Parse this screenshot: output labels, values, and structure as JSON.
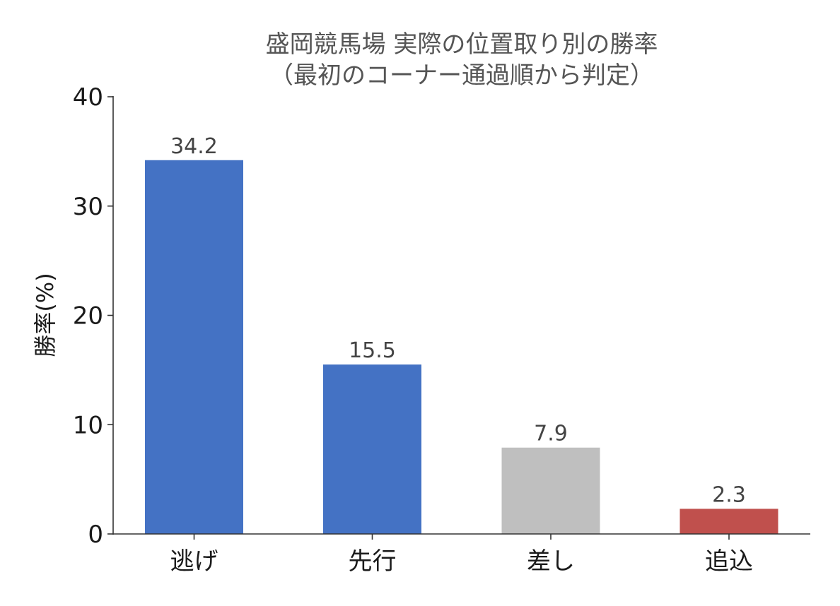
{
  "chart_data": {
    "type": "bar",
    "title_lines": [
      "盛岡競馬場 実際の位置取り別の勝率",
      "（最初のコーナー通過順から判定）"
    ],
    "xlabel": "",
    "ylabel": "勝率(%)",
    "categories": [
      "逃げ",
      "先行",
      "差し",
      "追込"
    ],
    "values": [
      34.2,
      15.5,
      7.9,
      2.3
    ],
    "data_labels": [
      "34.2",
      "15.5",
      "7.9",
      "2.3"
    ],
    "colors": [
      "#4472c4",
      "#4472c4",
      "#bfbfbf",
      "#c0504d"
    ],
    "ylim": [
      0,
      40
    ],
    "yticks": [
      0,
      10,
      20,
      30,
      40
    ],
    "ytick_labels": [
      "0",
      "10",
      "20",
      "30",
      "40"
    ],
    "grid": false,
    "legend": "none"
  }
}
